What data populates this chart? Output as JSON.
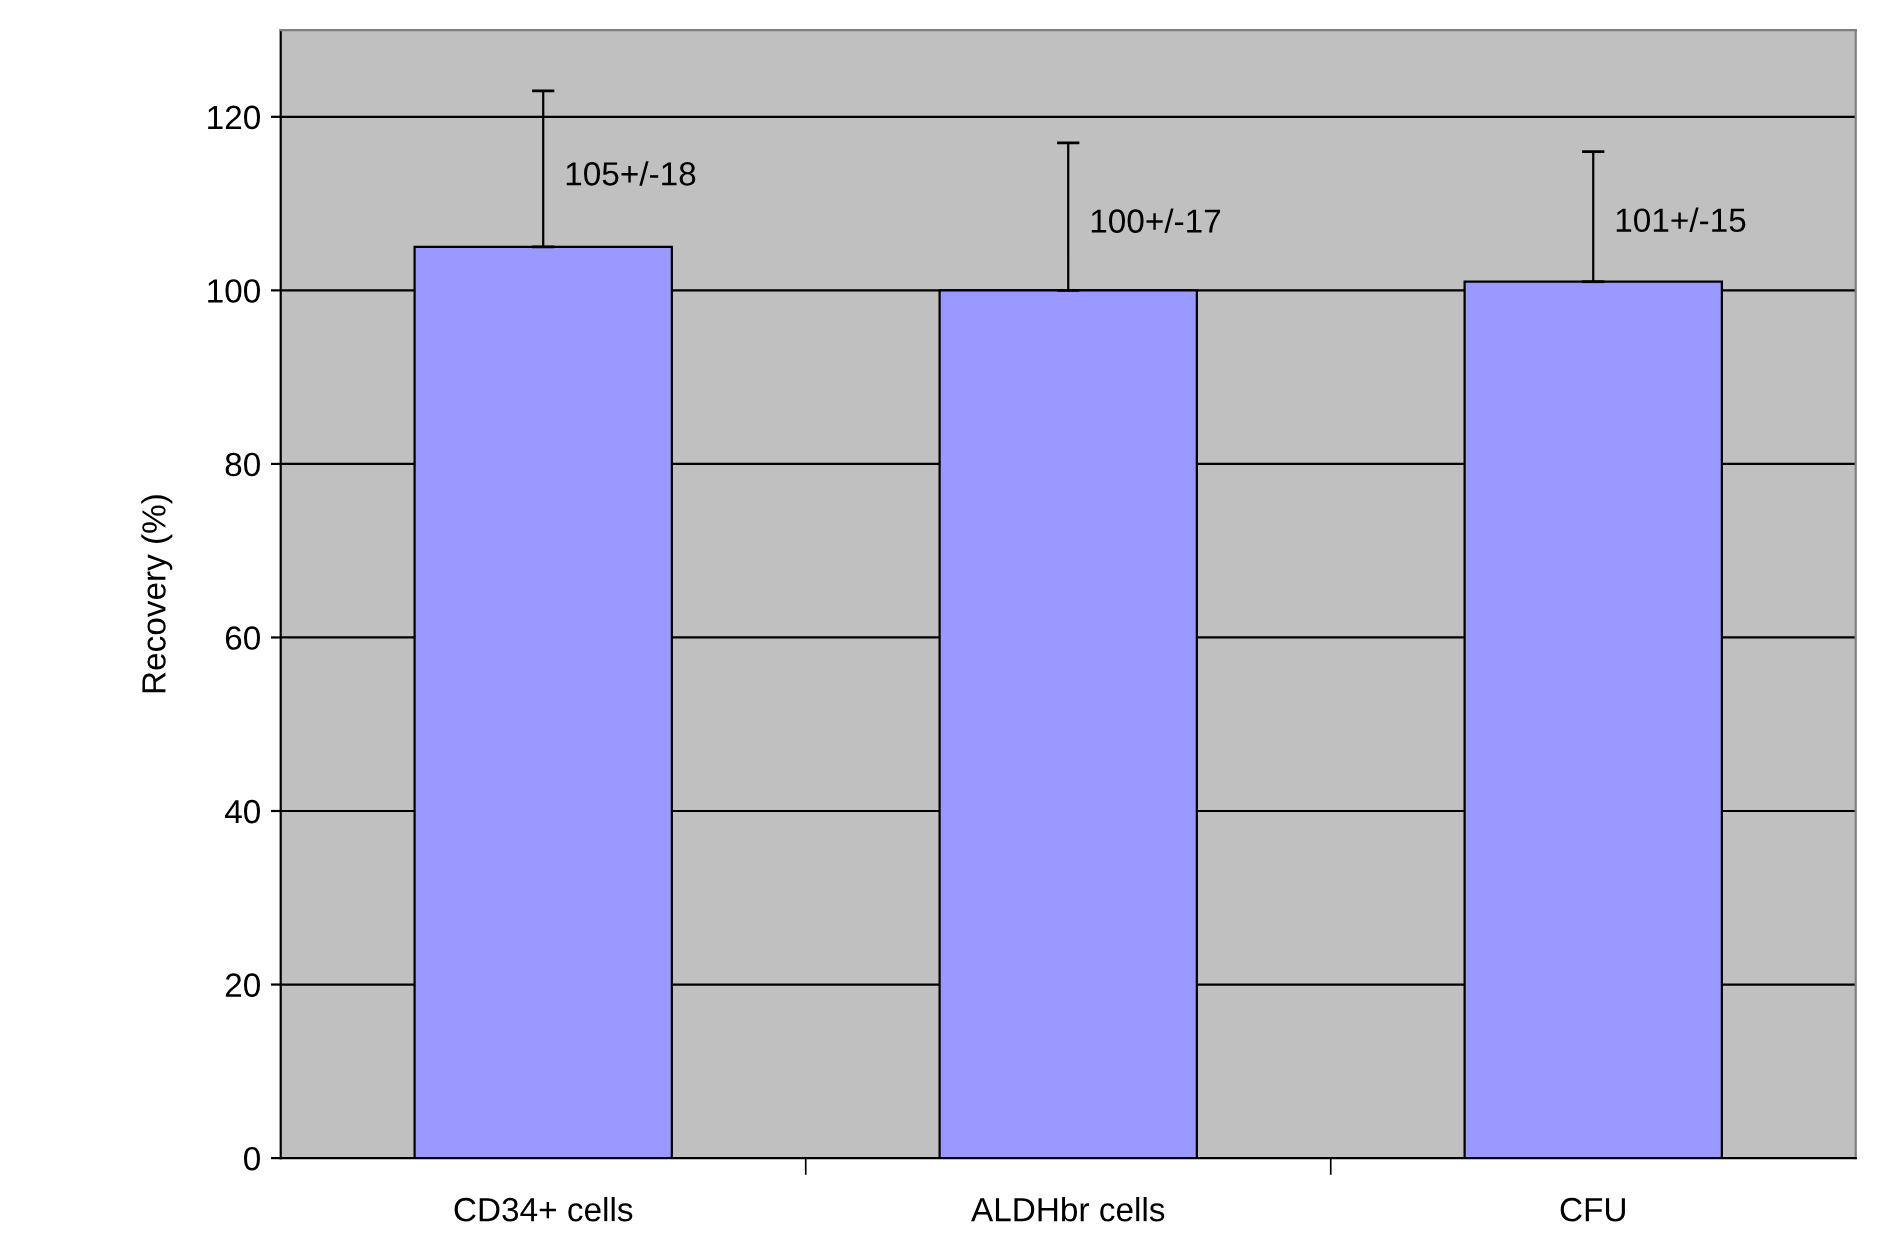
{
  "chart_data": {
    "type": "bar",
    "ylabel": "Recovery (%)",
    "categories": [
      "CD34+ cells",
      "ALDHbr cells",
      "CFU"
    ],
    "values": [
      105,
      100,
      101
    ],
    "errors": [
      [
        105,
        123
      ],
      [
        100,
        117
      ],
      [
        101,
        116
      ]
    ],
    "value_labels": [
      "105+/-18",
      "100+/-17",
      "101+/-15"
    ],
    "color": "#9999ff",
    "ylim": [
      0,
      130
    ],
    "yticks": [
      0,
      20,
      40,
      60,
      80,
      100,
      120
    ],
    "grid": "y"
  }
}
